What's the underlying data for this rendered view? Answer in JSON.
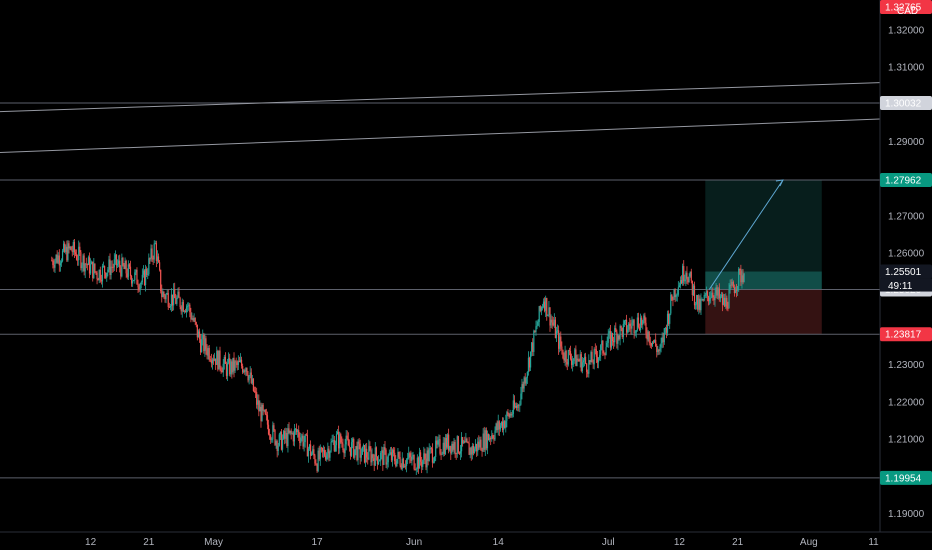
{
  "chart_data": {
    "type": "candlestick",
    "y_ticks": [
      "1.32000",
      "1.31000",
      "1.30000",
      "1.29000",
      "1.27000",
      "1.26000",
      "1.23000",
      "1.22000",
      "1.21000",
      "1.19000"
    ],
    "x_ticks": [
      "12",
      "21",
      "May",
      "17",
      "Jun",
      "14",
      "Jul",
      "12",
      "21",
      "Aug",
      "11"
    ],
    "price_labels": [
      {
        "text": "1.32765",
        "kind": "red"
      },
      {
        "text": "1.30032",
        "kind": "gray"
      },
      {
        "text": "1.27962",
        "kind": "teal"
      },
      {
        "text": "1.25501",
        "kind": "dark"
      },
      {
        "text": "1.25020",
        "kind": "gray"
      },
      {
        "text": "1.23817",
        "kind": "red"
      },
      {
        "text": "1.19954",
        "kind": "teal"
      }
    ],
    "countdown": "49:11",
    "symbol_fragment": "CAD",
    "horizontal_levels": [
      1.30032,
      1.27962,
      1.2502,
      1.23817,
      1.19954
    ],
    "trendlines": [
      {
        "x1": "2021-03-29",
        "y1": 1.298,
        "x2": "2021-08-12",
        "y2": 1.3058
      },
      {
        "x1": "2021-03-29",
        "y1": 1.287,
        "x2": "2021-08-12",
        "y2": 1.296
      }
    ],
    "position": {
      "type": "long",
      "entry": 1.2502,
      "target": 1.27962,
      "stop": 1.23817,
      "start": "2021-07-16",
      "end": "2021-08-03"
    },
    "close_price": 1.25501,
    "series_anchors": [
      [
        "2021-04-06",
        1.258
      ],
      [
        "2021-04-09",
        1.261
      ],
      [
        "2021-04-13",
        1.2545
      ],
      [
        "2021-04-16",
        1.257
      ],
      [
        "2021-04-20",
        1.252
      ],
      [
        "2021-04-22",
        1.262
      ],
      [
        "2021-04-23",
        1.249
      ],
      [
        "2021-04-27",
        1.246
      ],
      [
        "2021-04-29",
        1.236
      ],
      [
        "2021-05-03",
        1.229
      ],
      [
        "2021-05-06",
        1.23
      ],
      [
        "2021-05-08",
        1.218
      ],
      [
        "2021-05-11",
        1.209
      ],
      [
        "2021-05-14",
        1.212
      ],
      [
        "2021-05-17",
        1.204
      ],
      [
        "2021-05-20",
        1.21
      ],
      [
        "2021-05-24",
        1.206
      ],
      [
        "2021-05-28",
        1.205
      ],
      [
        "2021-06-02",
        1.204
      ],
      [
        "2021-06-06",
        1.209
      ],
      [
        "2021-06-10",
        1.207
      ],
      [
        "2021-06-14",
        1.213
      ],
      [
        "2021-06-17",
        1.219
      ],
      [
        "2021-06-19",
        1.233
      ],
      [
        "2021-06-21",
        1.248
      ],
      [
        "2021-06-24",
        1.233
      ],
      [
        "2021-06-28",
        1.23
      ],
      [
        "2021-07-02",
        1.238
      ],
      [
        "2021-07-06",
        1.242
      ],
      [
        "2021-07-09",
        1.233
      ],
      [
        "2021-07-11",
        1.249
      ],
      [
        "2021-07-13",
        1.256
      ],
      [
        "2021-07-15",
        1.245
      ],
      [
        "2021-07-17",
        1.25
      ],
      [
        "2021-07-19",
        1.246
      ],
      [
        "2021-07-21",
        1.253
      ],
      [
        "2021-07-22",
        1.255
      ]
    ],
    "y_range": [
      1.185,
      1.328
    ],
    "x_range": [
      "2021-03-29",
      "2021-08-12"
    ],
    "up_color": "#26a69a",
    "down_color": "#ef5350"
  }
}
